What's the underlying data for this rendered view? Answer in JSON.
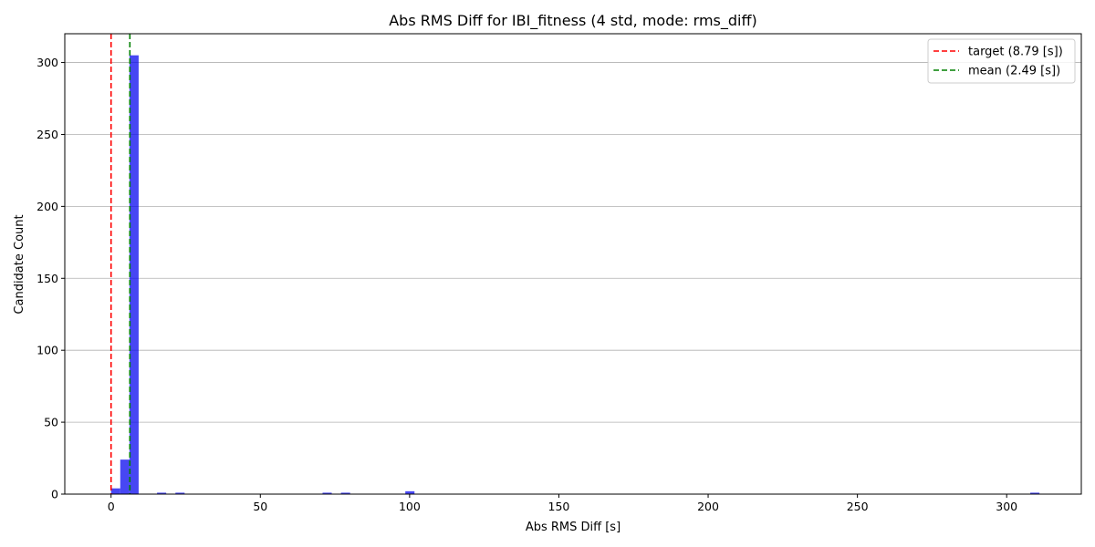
{
  "chart_data": {
    "type": "bar",
    "title": "Abs RMS Diff for IBI_fitness (4 std, mode: rms_diff)",
    "xlabel": "Abs RMS Diff [s]",
    "ylabel": "Candidate Count",
    "xlim": [
      -15.5,
      325
    ],
    "ylim": [
      0,
      320
    ],
    "xticks": [
      0,
      50,
      100,
      150,
      200,
      250,
      300
    ],
    "yticks": [
      0,
      50,
      100,
      150,
      200,
      250,
      300
    ],
    "grid": "y-major",
    "bar_color": "#0000ee",
    "bins": [
      {
        "x0": 0.0,
        "x1": 3.08,
        "count": 4
      },
      {
        "x0": 3.08,
        "x1": 6.16,
        "count": 24
      },
      {
        "x0": 6.16,
        "x1": 9.24,
        "count": 305
      },
      {
        "x0": 15.4,
        "x1": 18.48,
        "count": 1
      },
      {
        "x0": 21.56,
        "x1": 24.64,
        "count": 1
      },
      {
        "x0": 70.84,
        "x1": 73.92,
        "count": 1
      },
      {
        "x0": 77.0,
        "x1": 80.08,
        "count": 1
      },
      {
        "x0": 98.56,
        "x1": 101.64,
        "count": 2
      },
      {
        "x0": 307.9,
        "x1": 310.98,
        "count": 1
      }
    ],
    "vlines": [
      {
        "name": "target (8.79 [s])",
        "x": 0.0,
        "color": "#ff0000",
        "style": "dashed"
      },
      {
        "name": "mean (2.49 [s])",
        "x": 6.3,
        "color": "#008000",
        "style": "dashed"
      }
    ],
    "legend": {
      "position": "top-right"
    }
  }
}
